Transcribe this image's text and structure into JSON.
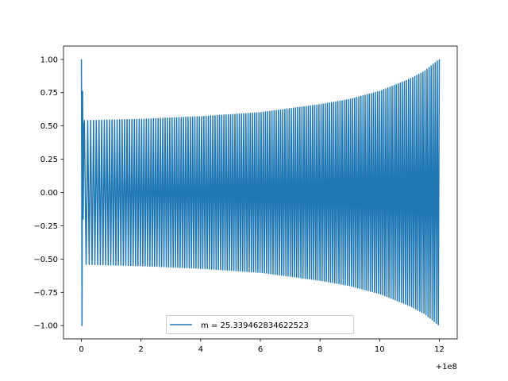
{
  "chart_data": {
    "type": "line",
    "title": "",
    "xlabel": "",
    "ylabel": "",
    "x_offset_label": "+1e8",
    "xlim": [
      -0.6,
      12.6
    ],
    "ylim": [
      -1.1,
      1.1
    ],
    "x_ticks": [
      0,
      2,
      4,
      6,
      8,
      10,
      12
    ],
    "x_tick_labels": [
      "0",
      "2",
      "4",
      "6",
      "8",
      "10",
      "12"
    ],
    "y_ticks": [
      -1.0,
      -0.75,
      -0.5,
      -0.25,
      0.0,
      0.25,
      0.5,
      0.75,
      1.0
    ],
    "y_tick_labels": [
      "−1.00",
      "−0.75",
      "−0.50",
      "−0.25",
      "0.00",
      "0.25",
      "0.50",
      "0.75",
      "1.00"
    ],
    "legend_position": "lower center",
    "grid": false,
    "series": [
      {
        "name": "m = 25.339462834622523",
        "color": "#1f77b4",
        "x_range": [
          0,
          12
        ],
        "initial_spike_peak": 1.0,
        "envelope": {
          "x": [
            0.1,
            2,
            4,
            6,
            8,
            9,
            10,
            11,
            11.5,
            12
          ],
          "amplitude": [
            0.54,
            0.55,
            0.57,
            0.6,
            0.66,
            0.7,
            0.76,
            0.85,
            0.91,
            1.0
          ]
        },
        "cycles": 160
      }
    ]
  }
}
